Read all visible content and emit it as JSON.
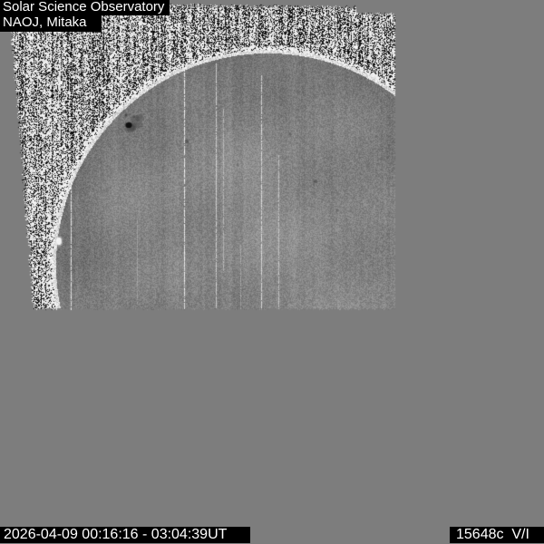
{
  "header": {
    "observatory": "Solar Science Observatory",
    "location": "NAOJ, Mitaka"
  },
  "footer": {
    "observation_time": "2026-04-09 00:16:16 - 03:04:39UT",
    "observation_code": "15648c  V/I"
  },
  "colors": {
    "background": "#7d7d7d",
    "label_background": "#000000",
    "label_text": "#ffffff"
  }
}
